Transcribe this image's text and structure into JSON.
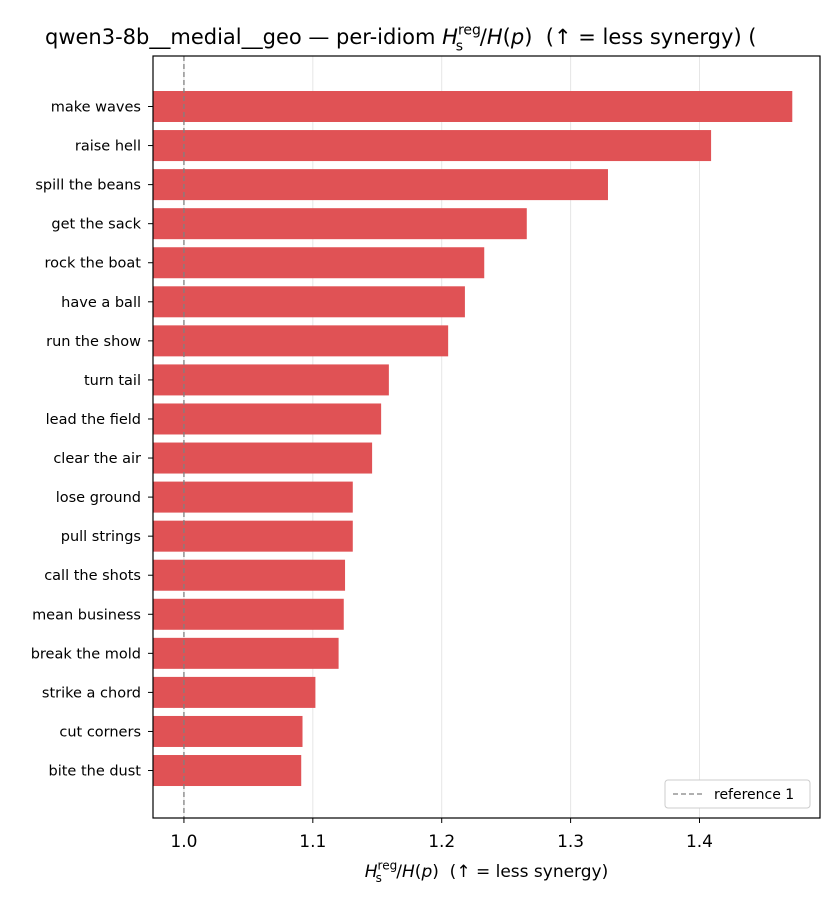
{
  "chart_data": {
    "type": "bar",
    "orientation": "horizontal",
    "title": {
      "prefix": "qwen3-8b__medial__geo — per-idiom ",
      "math_main": "H",
      "math_sub": "s",
      "math_sup": "reg",
      "math_rest": "/H(p)",
      "suffix": "  (↑ = less synergy) ("
    },
    "xlabel": {
      "math_main": "H",
      "math_sub": "s",
      "math_sup": "reg",
      "math_rest": "/H(p)",
      "suffix": "  (↑ = less synergy)"
    },
    "categories": [
      "make waves",
      "raise hell",
      "spill the beans",
      "get the sack",
      "rock the boat",
      "have a ball",
      "run the show",
      "turn tail",
      "lead the field",
      "clear the air",
      "lose ground",
      "pull strings",
      "call the shots",
      "mean business",
      "break the mold",
      "strike a chord",
      "cut corners",
      "bite the dust"
    ],
    "values": [
      1.472,
      1.409,
      1.329,
      1.266,
      1.233,
      1.218,
      1.205,
      1.159,
      1.153,
      1.146,
      1.131,
      1.131,
      1.125,
      1.124,
      1.12,
      1.102,
      1.092,
      1.091
    ],
    "xlim": [
      0.976,
      1.4935
    ],
    "xticks": [
      "1.0",
      "1.1",
      "1.2",
      "1.3",
      "1.4"
    ],
    "reference_line": {
      "value": 1.0,
      "label": "reference 1",
      "color": "#808080",
      "style": "dashed"
    },
    "bar_color": "#e05255",
    "grid": {
      "x": true,
      "y": false
    },
    "legend_placement": "lower-right"
  }
}
